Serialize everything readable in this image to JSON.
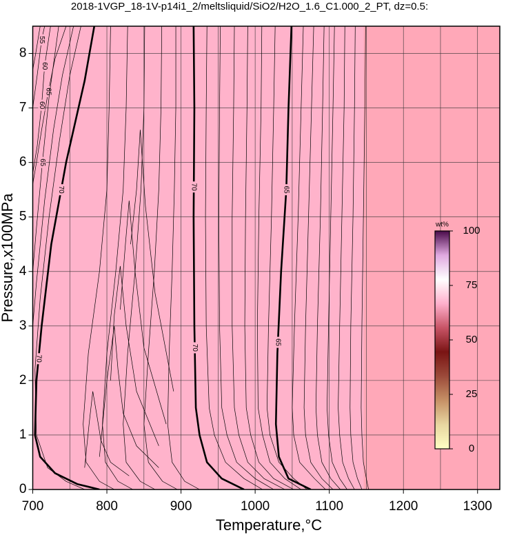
{
  "chart_data": {
    "type": "contour",
    "title": "2018-1VGP_18-1V-p14i1_2/meltsliquid/SiO2/H2O_1.6_C1.000_2_PT, dz=0.5:",
    "x_label": "Temperature,°C",
    "y_label": "Pressure,x100MPa",
    "xlim": [
      700,
      1330
    ],
    "ylim": [
      0,
      8.5
    ],
    "xticks": [
      700,
      800,
      900,
      1000,
      1100,
      1200,
      1300
    ],
    "xgrid": [
      750,
      800,
      850,
      900,
      950,
      1000,
      1050,
      1100,
      1150,
      1200,
      1250,
      1300
    ],
    "yticks": [
      0,
      1,
      2,
      3,
      4,
      5,
      6,
      7,
      8
    ],
    "grid": true,
    "colors": {
      "field_low": "#ffb3cb",
      "field_high": "#ffa8b8",
      "grid": "#333333",
      "line": "#000000"
    },
    "contours": [
      {
        "level": 70,
        "bold": true,
        "label_y": [
          5.5,
          2.4
        ],
        "x": [
          783,
          770,
          745,
          725,
          712,
          705,
          703,
          710,
          730,
          760,
          790
        ],
        "y": [
          8.5,
          7.5,
          6,
          4.5,
          3,
          2,
          1,
          0.6,
          0.3,
          0.1,
          0
        ]
      },
      {
        "level": 70,
        "bold": true,
        "label_y": [
          5.55,
          2.6
        ],
        "x": [
          917,
          918,
          917,
          918,
          920,
          925,
          935,
          955,
          985
        ],
        "y": [
          8.5,
          7,
          5,
          3,
          1.5,
          1,
          0.5,
          0.2,
          0
        ]
      },
      {
        "level": 65,
        "bold": true,
        "label_y": [
          5.5,
          2.7
        ],
        "x": [
          1049,
          1045,
          1042,
          1035,
          1030,
          1028,
          1032,
          1045,
          1075
        ],
        "y": [
          8.5,
          7,
          5.5,
          4,
          2.5,
          1.2,
          0.6,
          0.2,
          0
        ]
      },
      {
        "level": 65,
        "label_y": [
          7.3
        ],
        "x": [
          745,
          730,
          721,
          712,
          705,
          700
        ],
        "y": [
          8.5,
          7.9,
          7.3,
          6.6,
          6.0,
          5.6
        ]
      },
      {
        "level": 65,
        "label_y": [
          6.0
        ],
        "x": [
          735,
          722,
          713,
          705,
          700
        ],
        "y": [
          8.5,
          7.2,
          6.0,
          4.8,
          4.0
        ]
      },
      {
        "level": 60,
        "label_y": [
          7.77,
          7.05
        ],
        "x": [
          724,
          716,
          712,
          706,
          700
        ],
        "y": [
          8.5,
          7.77,
          7.05,
          6.3,
          5.8
        ]
      },
      {
        "level": 55,
        "label_y": [
          8.25
        ],
        "x": [
          716,
          712,
          706,
          700
        ],
        "y": [
          8.5,
          8.25,
          7.6,
          7.0
        ]
      },
      {
        "x": [
          755,
          740,
          728,
          716,
          705,
          700
        ],
        "y": [
          8.5,
          7.6,
          6.6,
          5.3,
          3.8,
          3.0
        ]
      },
      {
        "x": [
          765,
          750,
          736,
          722,
          710,
          703,
          705,
          720,
          745,
          770
        ],
        "y": [
          8.5,
          7.6,
          6.4,
          5.0,
          3.5,
          2.2,
          1.0,
          0.4,
          0.15,
          0
        ]
      },
      {
        "x": [
          710,
          704,
          700
        ],
        "y": [
          8.5,
          8.0,
          7.7
        ]
      },
      {
        "x": [
          805,
          803,
          800,
          790,
          775,
          768,
          772,
          790,
          810
        ],
        "y": [
          8.5,
          7,
          5.5,
          4,
          2.5,
          1.2,
          0.5,
          0.15,
          0
        ]
      },
      {
        "x": [
          828,
          826,
          822,
          812,
          800,
          794,
          798,
          815,
          835
        ],
        "y": [
          8.5,
          7,
          5.5,
          4,
          2.5,
          1.2,
          0.5,
          0.15,
          0
        ]
      },
      {
        "x": [
          851,
          850,
          846,
          838,
          828,
          822,
          826,
          845,
          865
        ],
        "y": [
          8.5,
          7,
          5.5,
          4,
          2.5,
          1.2,
          0.5,
          0.15,
          0
        ]
      },
      {
        "x": [
          874,
          873,
          870,
          864,
          856,
          850,
          856,
          875,
          895
        ],
        "y": [
          8.5,
          7,
          5.5,
          4,
          2.5,
          1.2,
          0.5,
          0.15,
          0
        ]
      },
      {
        "x": [
          893,
          893,
          891,
          888,
          884,
          882,
          888,
          905,
          925
        ],
        "y": [
          8.5,
          7,
          5.5,
          4,
          2.5,
          1.2,
          0.5,
          0.15,
          0
        ]
      },
      {
        "x": [
          770,
          776,
          781,
          786,
          792,
          805,
          830
        ],
        "y": [
          0.4,
          1.2,
          1.8,
          1.4,
          0.9,
          0.5,
          0.25
        ]
      },
      {
        "x": [
          790,
          800,
          810,
          815,
          822,
          840,
          870
        ],
        "y": [
          0.6,
          2.0,
          3.0,
          2.2,
          1.4,
          0.8,
          0.4
        ]
      },
      {
        "x": [
          805,
          810,
          818,
          826,
          840,
          870
        ],
        "y": [
          2.0,
          3.2,
          4.1,
          3.0,
          1.8,
          0.8
        ]
      },
      {
        "x": [
          818,
          825,
          830,
          838,
          850,
          880
        ],
        "y": [
          3.3,
          4.5,
          5.3,
          4.0,
          2.6,
          1.2
        ]
      },
      {
        "x": [
          832,
          840,
          845,
          852,
          865,
          890
        ],
        "y": [
          4.5,
          5.5,
          6.6,
          5.2,
          3.6,
          1.8
        ]
      },
      {
        "x": [
          935,
          934,
          933,
          934,
          938,
          945,
          960,
          985,
          1010
        ],
        "y": [
          8.5,
          7,
          5,
          3,
          1.5,
          1,
          0.5,
          0.2,
          0
        ]
      },
      {
        "x": [
          953,
          952,
          951,
          952,
          955,
          962,
          975,
          1000,
          1025
        ],
        "y": [
          8.5,
          7,
          5,
          3,
          1.5,
          1,
          0.5,
          0.2,
          0
        ]
      },
      {
        "x": [
          972,
          971,
          969,
          969,
          972,
          978,
          990,
          1012,
          1040
        ],
        "y": [
          8.5,
          7,
          5,
          3,
          1.5,
          1,
          0.5,
          0.2,
          0
        ]
      },
      {
        "x": [
          990,
          989,
          987,
          986,
          988,
          994,
          1005,
          1025,
          1052
        ],
        "y": [
          8.5,
          7,
          5,
          3,
          1.5,
          1,
          0.5,
          0.2,
          0
        ]
      },
      {
        "x": [
          1009,
          1008,
          1005,
          1003,
          1004,
          1010,
          1020,
          1040,
          1062
        ],
        "y": [
          8.5,
          7,
          5,
          3,
          1.5,
          1,
          0.5,
          0.2,
          0
        ]
      },
      {
        "x": [
          1027,
          1025,
          1022,
          1018,
          1016,
          1020,
          1032,
          1052,
          1070
        ],
        "y": [
          8.5,
          7,
          5,
          3,
          1.5,
          1,
          0.5,
          0.2,
          0
        ]
      },
      {
        "x": [
          1065,
          1062,
          1058,
          1053,
          1050,
          1052,
          1060,
          1080,
          1095
        ],
        "y": [
          8.5,
          7,
          5,
          3,
          1.5,
          1,
          0.5,
          0.2,
          0
        ]
      },
      {
        "x": [
          1079,
          1076,
          1072,
          1068,
          1066,
          1068,
          1075,
          1090,
          1105
        ],
        "y": [
          8.5,
          7,
          5,
          3,
          1.5,
          1,
          0.5,
          0.2,
          0
        ]
      },
      {
        "x": [
          1093,
          1091,
          1088,
          1084,
          1082,
          1084,
          1090,
          1102,
          1115
        ],
        "y": [
          8.5,
          7,
          5,
          3,
          1.5,
          1,
          0.5,
          0.2,
          0
        ]
      },
      {
        "x": [
          1107,
          1105,
          1102,
          1099,
          1097,
          1099,
          1104,
          1114,
          1124
        ],
        "y": [
          8.5,
          7,
          5,
          3,
          1.5,
          1,
          0.5,
          0.2,
          0
        ]
      },
      {
        "x": [
          1121,
          1120,
          1117,
          1114,
          1112,
          1114,
          1118,
          1126,
          1134
        ],
        "y": [
          8.5,
          7,
          5,
          3,
          1.5,
          1,
          0.5,
          0.2,
          0
        ]
      },
      {
        "x": [
          1135,
          1134,
          1132,
          1129,
          1128,
          1129,
          1132,
          1138,
          1144
        ],
        "y": [
          8.5,
          7,
          5,
          3,
          1.5,
          1,
          0.5,
          0.2,
          0
        ]
      },
      {
        "x": [
          1149,
          1148,
          1146,
          1144,
          1143,
          1144,
          1146,
          1150,
          1153
        ],
        "y": [
          8.5,
          7,
          5,
          3,
          1.5,
          1,
          0.5,
          0.2,
          0
        ]
      }
    ],
    "colorbar": {
      "label": "wt%",
      "clim": [
        0,
        100
      ],
      "ticks": [
        0,
        25,
        50,
        75,
        100
      ],
      "colors": [
        "#ffffc4",
        "#e8d6a0",
        "#c69066",
        "#9c4a3a",
        "#7a1414",
        "#c85466",
        "#ffb0cc",
        "#ffffff",
        "#e0a8e0",
        "#4a0a4a"
      ]
    }
  }
}
